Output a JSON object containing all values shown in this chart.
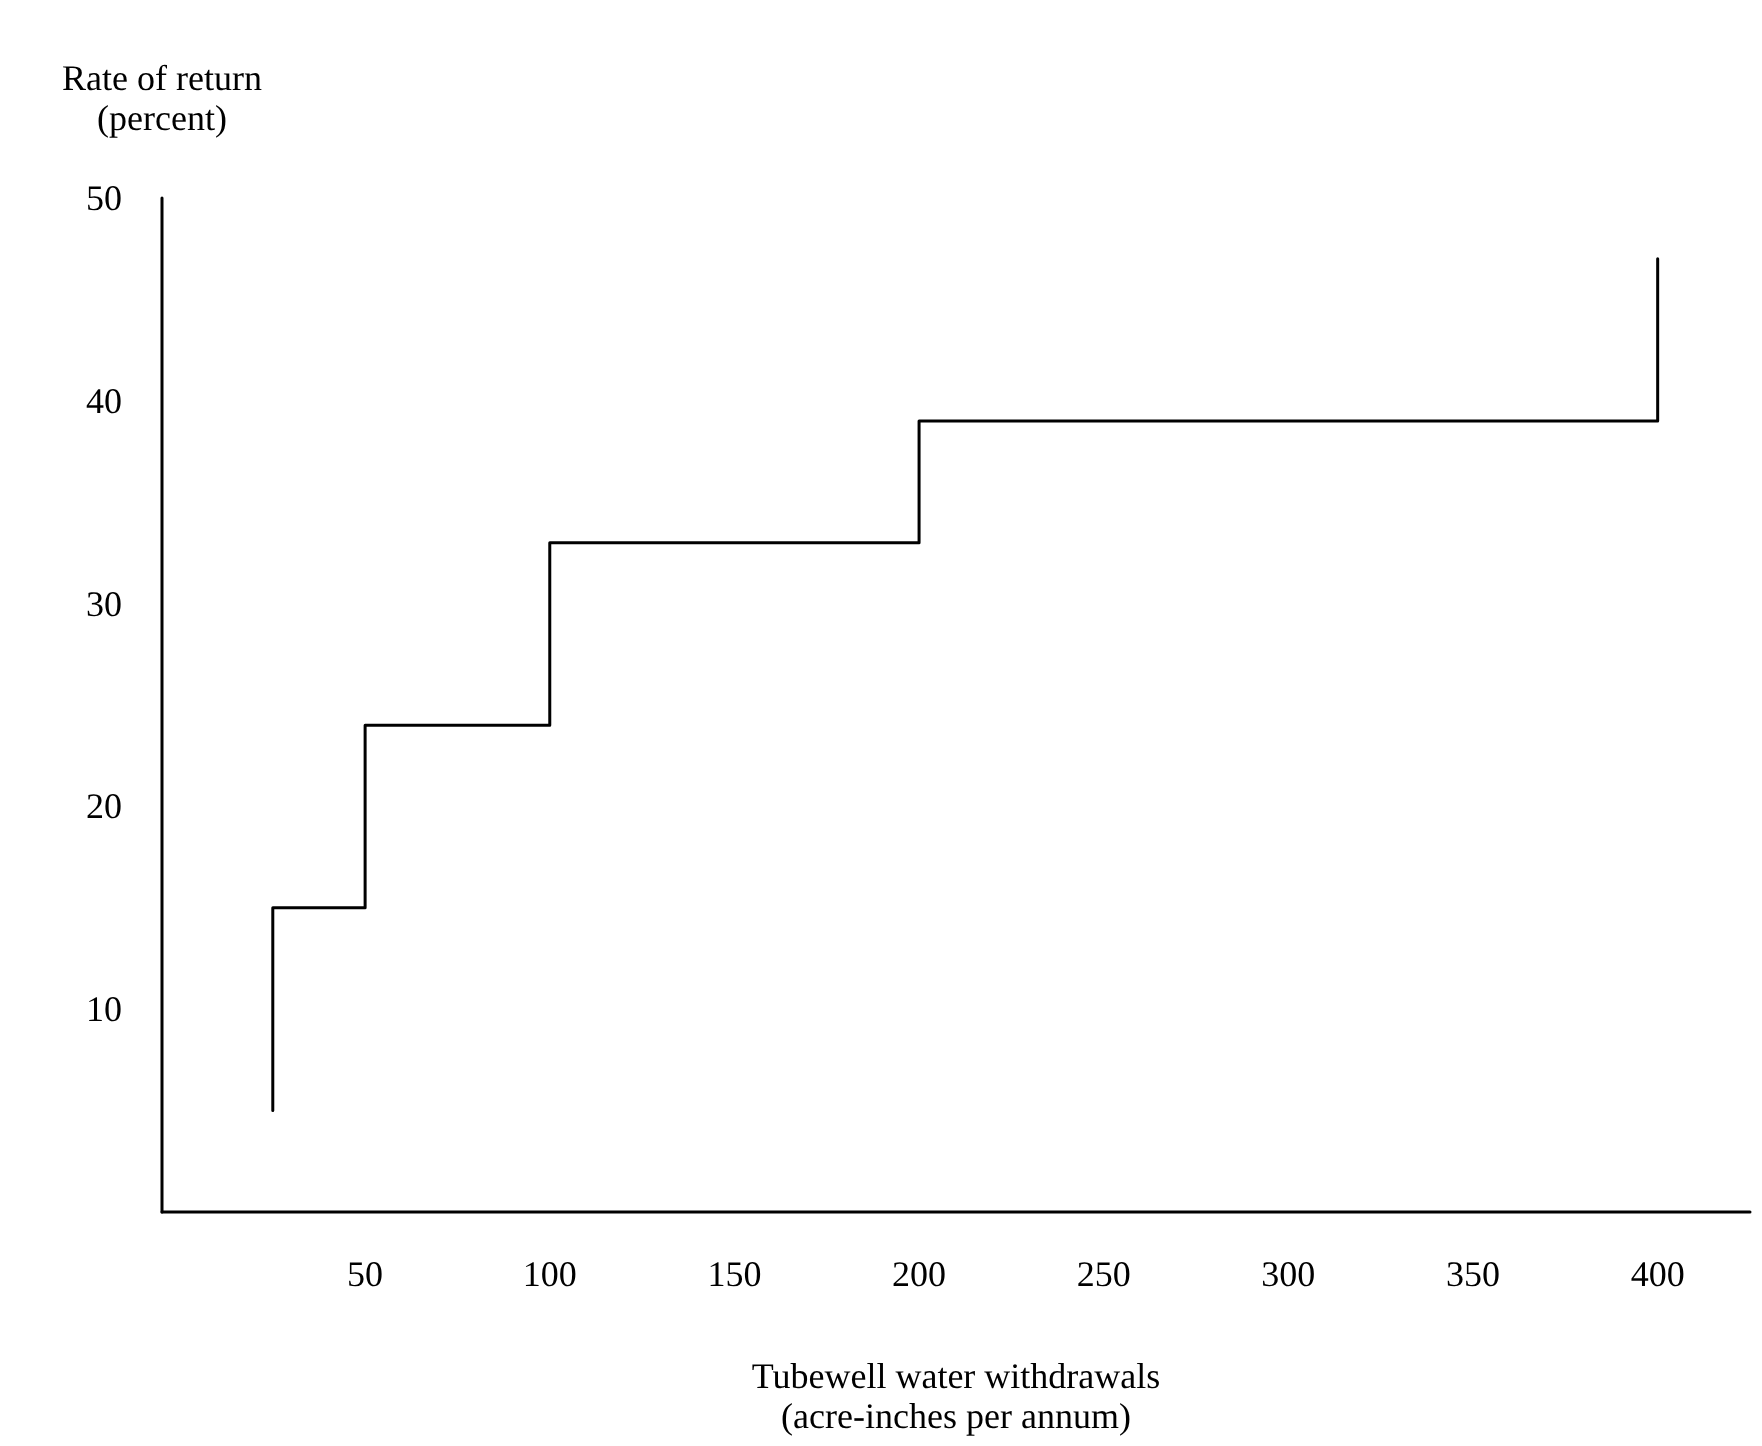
{
  "chart_data": {
    "type": "line",
    "xlabel": "Tubewell water withdrawals\n(acre-inches per annum)",
    "ylabel": "Rate of return\n(percent)",
    "x": [
      25,
      25,
      50,
      50,
      100,
      100,
      200,
      200,
      400,
      400
    ],
    "series": [
      {
        "color": "#000000",
        "values": [
          5,
          15,
          15,
          24,
          24,
          33,
          33,
          39,
          39,
          47
        ]
      }
    ],
    "xlim": [
      -5,
      425
    ],
    "xticks": [
      50,
      100,
      150,
      200,
      250,
      300,
      350,
      400
    ],
    "ylim": [
      0,
      50
    ],
    "yticks": [
      10,
      20,
      30,
      40,
      50
    ],
    "grid": false,
    "marker": "none",
    "line_style": "solid"
  }
}
